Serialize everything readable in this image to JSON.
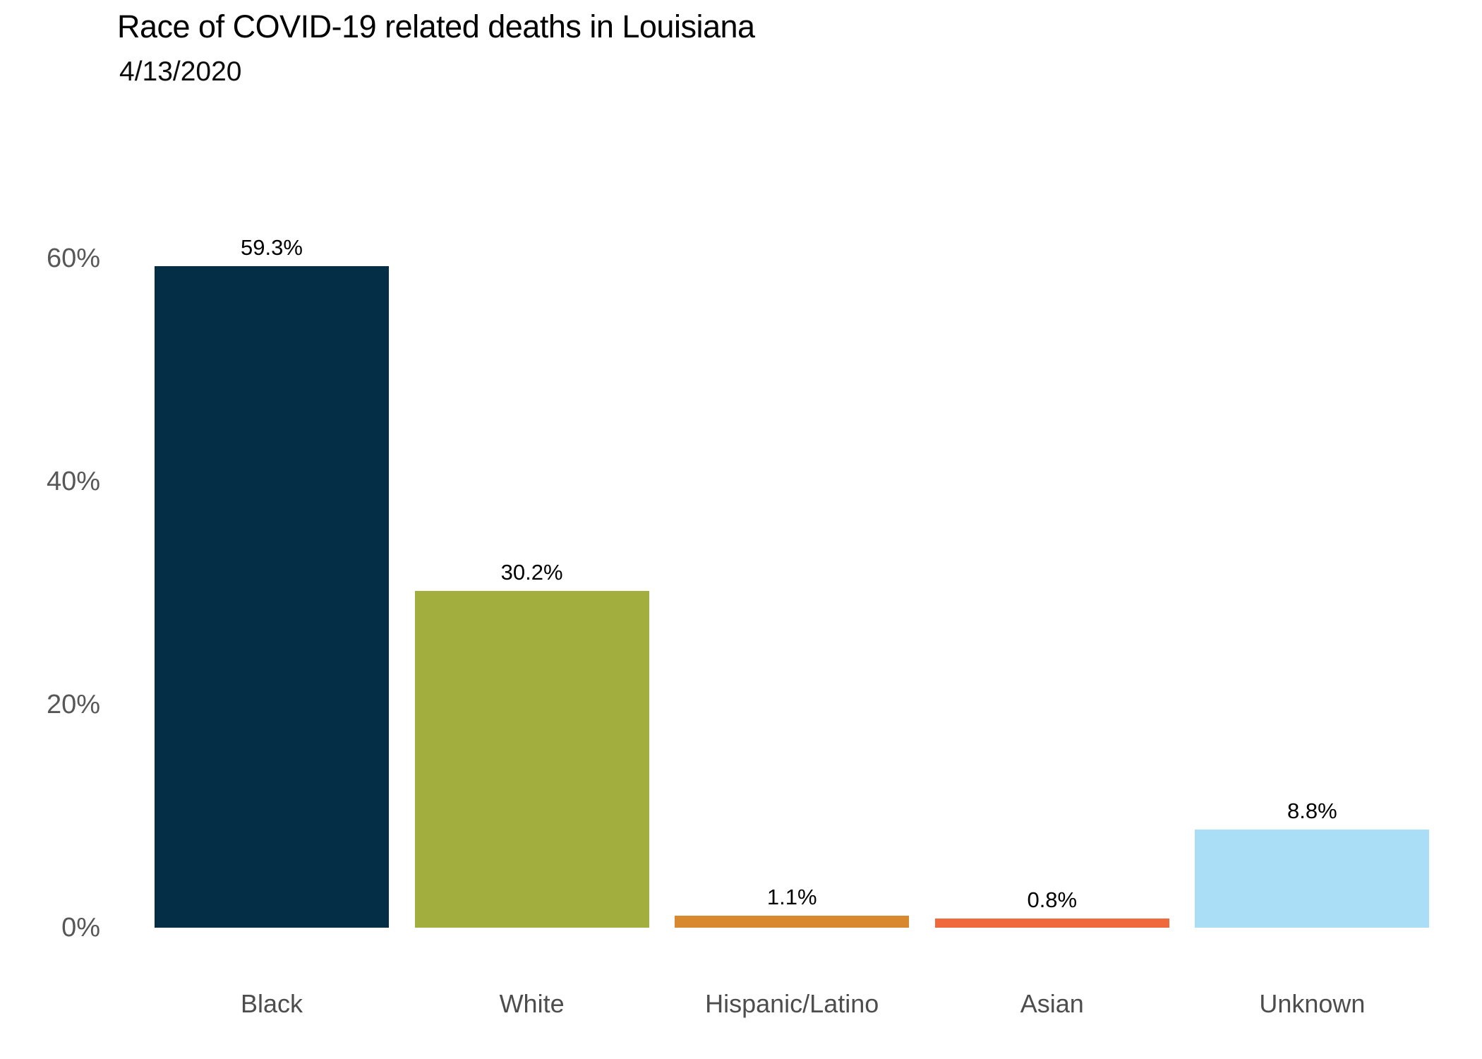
{
  "chart_data": {
    "type": "bar",
    "title": "Race of COVID-19 related deaths in Louisiana",
    "subtitle": "4/13/2020",
    "categories": [
      "Black",
      "White",
      "Hispanic/Latino",
      "Asian",
      "Unknown"
    ],
    "values": [
      59.3,
      30.2,
      1.1,
      0.8,
      8.8
    ],
    "value_labels": [
      "59.3%",
      "30.2%",
      "1.1%",
      "0.8%",
      "8.8%"
    ],
    "bar_colors": [
      "#032e45",
      "#a2ae3e",
      "#d8882e",
      "#f0693c",
      "#aadef7"
    ],
    "xlabel": "",
    "ylabel": "",
    "y_axis": {
      "ticks": [
        0,
        20,
        40,
        60
      ],
      "tick_labels": [
        "0%",
        "20%",
        "40%",
        "60%"
      ],
      "range": [
        0,
        60
      ],
      "unit": "%"
    },
    "grid": false,
    "legend": false,
    "text_colors": {
      "title": "#000000",
      "subtitle": "#0d0d0d",
      "tick": "#575757",
      "category": "#4d4d4d",
      "value_label": "#000000"
    }
  }
}
